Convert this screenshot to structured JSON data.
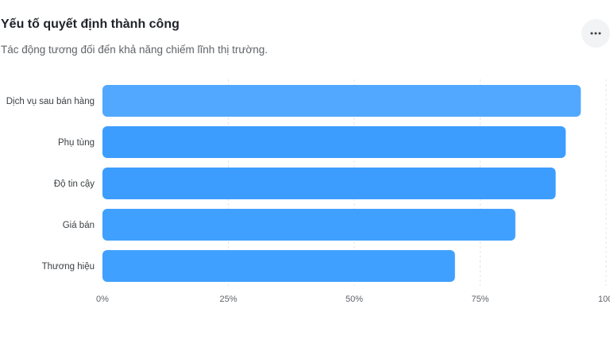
{
  "header": {
    "title": "Yếu tố quyết định thành công",
    "subtitle": "Tác động tương đối đến khả năng chiếm lĩnh thị trường.",
    "more_icon": "more-horizontal-icon"
  },
  "chart_data": {
    "type": "bar",
    "orientation": "horizontal",
    "title": "Yếu tố quyết định thành công",
    "subtitle": "Tác động tương đối đến khả năng chiếm lĩnh thị trường.",
    "categories": [
      "Dịch vụ sau bán hàng",
      "Phụ tùng",
      "Độ tin cậy",
      "Giá bán",
      "Thương hiệu"
    ],
    "values": [
      95,
      92,
      90,
      82,
      70
    ],
    "xlabel": "",
    "ylabel": "",
    "xlim": [
      0,
      100
    ],
    "x_ticks": [
      "0%",
      "25%",
      "50%",
      "75%",
      "100%"
    ],
    "grid": true,
    "bar_colors": [
      "#52a8ff",
      "#3c9dff",
      "#3c9dff",
      "#40a0ff",
      "#40a0ff"
    ]
  }
}
